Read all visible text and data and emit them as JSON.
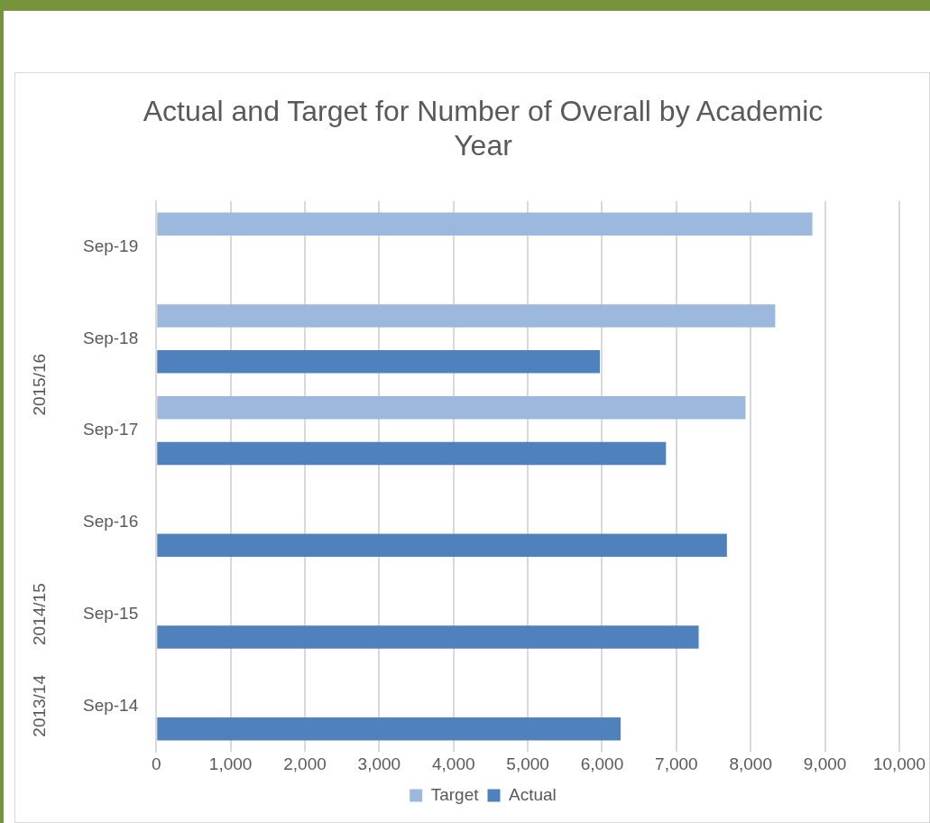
{
  "chart_data": {
    "type": "bar",
    "orientation": "horizontal",
    "title": "Actual and Target for Number of Overall by Academic Year",
    "categories": [
      "Sep-19",
      "Sep-18",
      "Sep-17",
      "Sep-16",
      "Sep-15",
      "Sep-14"
    ],
    "series": [
      {
        "name": "Target",
        "color": "#9db8dd",
        "values": [
          8830,
          8330,
          7930,
          null,
          null,
          null
        ]
      },
      {
        "name": "Actual",
        "color": "#4f81bd",
        "values": [
          null,
          5970,
          6860,
          7680,
          7300,
          6250
        ]
      }
    ],
    "xlim": [
      0,
      10000
    ],
    "xticks": [
      0,
      {
        "value": 1000,
        "label": "1,000"
      },
      {
        "value": 2000,
        "label": "2,000"
      },
      {
        "value": 3000,
        "label": "3,000"
      },
      {
        "value": 4000,
        "label": "4,000"
      },
      {
        "value": 5000,
        "label": "5,000"
      },
      {
        "value": 6000,
        "label": "6,000"
      },
      {
        "value": 7000,
        "label": "7,000"
      },
      {
        "value": 8000,
        "label": "8,000"
      },
      {
        "value": 9000,
        "label": "9,000"
      },
      {
        "value": 10000,
        "label": "10,000"
      }
    ],
    "grid": "x",
    "legend": "bottom",
    "annotations": [
      "2015/16",
      "2014/15",
      "2013/14"
    ]
  }
}
